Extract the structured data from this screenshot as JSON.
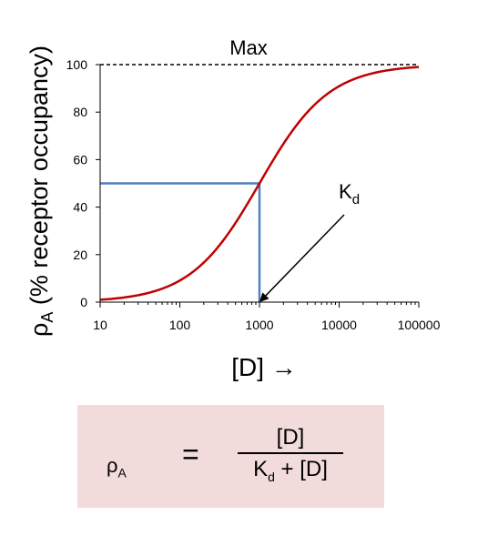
{
  "chart_data": {
    "type": "line",
    "xscale": "log",
    "xlim": [
      10,
      100000
    ],
    "ylim": [
      0,
      100
    ],
    "xticks": [
      10,
      100,
      1000,
      10000,
      100000
    ],
    "xtick_labels": [
      "10",
      "100",
      "1000",
      "10000",
      "100000"
    ],
    "yticks": [
      0,
      20,
      40,
      60,
      80,
      100
    ],
    "ytick_labels": [
      "0",
      "20",
      "40",
      "60",
      "80",
      "100"
    ],
    "ylabel_main": "ρ",
    "ylabel_sub": "A",
    "ylabel_rest": " (% receptor occupancy)",
    "xlabel": "[D] →",
    "series": [
      {
        "x": [
          10,
          17.8,
          31.6,
          56.2,
          100,
          177.8,
          316.2,
          562.3,
          1000,
          1778,
          3162,
          5623,
          10000,
          17783,
          31623,
          56234,
          100000
        ],
        "y": [
          1.0,
          1.7,
          3.1,
          5.3,
          9.1,
          15.1,
          24.0,
          36.0,
          50.0,
          64.0,
          76.0,
          84.9,
          90.9,
          94.7,
          96.9,
          98.3,
          99.0
        ],
        "color": "#c00000"
      }
    ],
    "max_line": {
      "y": 100,
      "label": "Max"
    },
    "half_max_guide": {
      "x": 1000,
      "y": 50,
      "color": "#4f81bd"
    },
    "kd_annotation": {
      "label_main": "K",
      "label_sub": "d",
      "points_to_x": 1000,
      "points_to_y": 0
    },
    "grid": false,
    "legend": "none"
  },
  "formula": {
    "lhs_main": "ρ",
    "lhs_sub": "A",
    "equals": "=",
    "numerator": "[D]",
    "den_k": "K",
    "den_sub": "d",
    "den_rest": " + [D]"
  }
}
